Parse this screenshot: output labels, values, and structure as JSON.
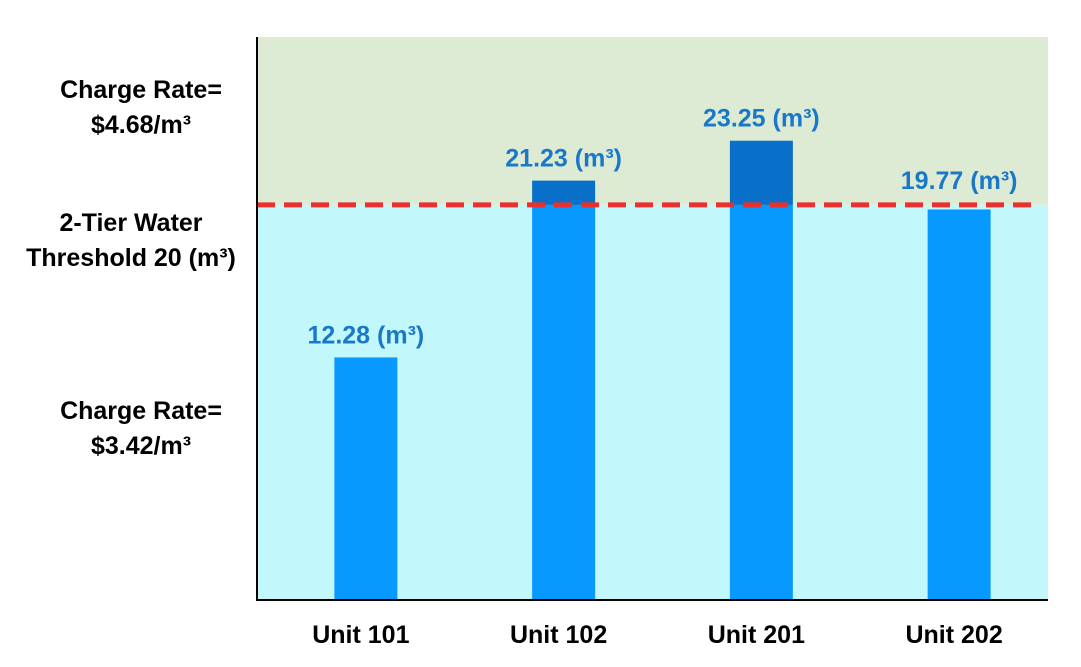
{
  "chart_data": {
    "type": "bar",
    "categories": [
      "Unit 101",
      "Unit 102",
      "Unit 201",
      "Unit 202"
    ],
    "values": [
      12.28,
      21.23,
      23.25,
      19.77
    ],
    "data_labels": [
      "12.28 (m³)",
      "21.23 (m³)",
      "23.25 (m³)",
      "19.77 (m³)"
    ],
    "ylim": [
      0,
      28.5
    ],
    "threshold": 20,
    "threshold_label": [
      "2-Tier Water",
      "Threshold 20 (m³)"
    ],
    "upper_tier_label": [
      "Charge Rate=",
      "$4.68/m³"
    ],
    "lower_tier_label": [
      "Charge Rate=",
      "$3.42/m³"
    ],
    "colors": {
      "bar": "#0899FF",
      "bar_over_threshold": "#0870C8",
      "data_label": "#1A78C8",
      "threshold_line": "#E8302E",
      "upper_region": "#DDEBD4",
      "lower_region": "#C2F8FC",
      "axis": "#000000"
    }
  }
}
